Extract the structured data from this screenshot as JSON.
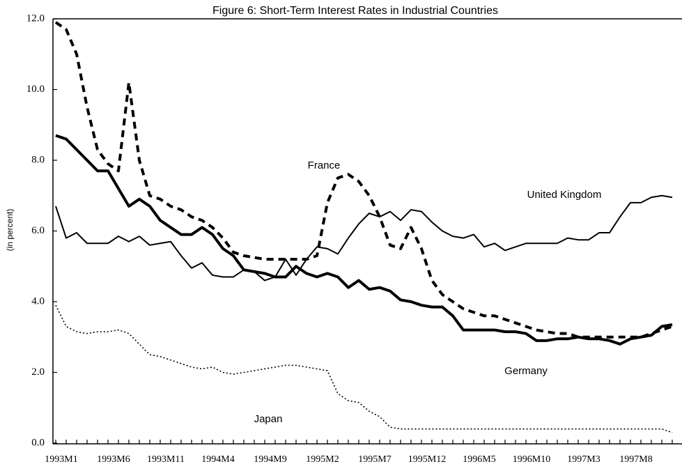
{
  "chart_data": {
    "type": "line",
    "title": "Figure 6: Short-Term Interest Rates in Industrial Countries",
    "y_label": "(in percent)",
    "categories": [
      "1993M1",
      null,
      null,
      null,
      null,
      "1993M6",
      null,
      null,
      null,
      null,
      "1993M11",
      null,
      null,
      null,
      null,
      "1994M4",
      null,
      null,
      null,
      null,
      "1994M9",
      null,
      null,
      null,
      null,
      "1995M2",
      null,
      null,
      null,
      null,
      "1995M7",
      null,
      null,
      null,
      null,
      "1995M12",
      null,
      null,
      null,
      null,
      "1996M5",
      null,
      null,
      null,
      null,
      "1996M10",
      null,
      null,
      null,
      null,
      "1997M3",
      null,
      null,
      null,
      null,
      "1997M8",
      null,
      null,
      null,
      null
    ],
    "ylim": [
      0,
      12
    ],
    "yticks": [
      {
        "value": 0,
        "label": "0.0"
      },
      {
        "value": 2,
        "label": "2.0"
      },
      {
        "value": 4,
        "label": "4.0"
      },
      {
        "value": 6,
        "label": "6.0"
      },
      {
        "value": 8,
        "label": "8.0"
      },
      {
        "value": 10,
        "label": "10.0"
      },
      {
        "value": 12,
        "label": "12.0"
      }
    ],
    "grid": false,
    "series": [
      {
        "name": "France",
        "color": "#000000",
        "dash": "dashed",
        "width": 4,
        "values": [
          11.9,
          11.7,
          11.0,
          9.5,
          8.3,
          7.9,
          7.7,
          10.2,
          8.0,
          7.0,
          6.9,
          6.7,
          6.6,
          6.4,
          6.3,
          6.1,
          5.8,
          5.4,
          5.3,
          5.25,
          5.2,
          5.2,
          5.2,
          5.2,
          5.2,
          5.3,
          6.8,
          7.5,
          7.6,
          7.4,
          7.0,
          6.4,
          5.6,
          5.5,
          6.1,
          5.5,
          4.6,
          4.2,
          4.0,
          3.8,
          3.7,
          3.6,
          3.6,
          3.5,
          3.4,
          3.3,
          3.2,
          3.15,
          3.1,
          3.1,
          3.0,
          3.0,
          3.0,
          3.0,
          3.0,
          3.0,
          3.0,
          3.1,
          3.2,
          3.3
        ]
      },
      {
        "name": "United Kingdom",
        "color": "#000000",
        "dash": "solid",
        "width": 2,
        "values": [
          6.7,
          5.8,
          5.95,
          5.65,
          5.65,
          5.65,
          5.85,
          5.7,
          5.85,
          5.6,
          5.65,
          5.7,
          5.3,
          4.95,
          5.1,
          4.75,
          4.7,
          4.7,
          4.9,
          4.85,
          4.6,
          4.7,
          5.2,
          4.75,
          5.2,
          5.55,
          5.5,
          5.35,
          5.8,
          6.2,
          6.5,
          6.4,
          6.55,
          6.3,
          6.6,
          6.55,
          6.25,
          6.0,
          5.85,
          5.8,
          5.9,
          5.55,
          5.65,
          5.45,
          5.55,
          5.65,
          5.65,
          5.65,
          5.65,
          5.8,
          5.75,
          5.75,
          5.95,
          5.95,
          6.4,
          6.8,
          6.8,
          6.95,
          7.0,
          6.95
        ]
      },
      {
        "name": "Germany",
        "color": "#000000",
        "dash": "solid",
        "width": 4,
        "values": [
          8.7,
          8.6,
          8.3,
          8.0,
          7.7,
          7.7,
          7.2,
          6.7,
          6.9,
          6.7,
          6.3,
          6.1,
          5.9,
          5.9,
          6.1,
          5.9,
          5.5,
          5.3,
          4.9,
          4.85,
          4.8,
          4.7,
          4.7,
          5.0,
          4.8,
          4.7,
          4.8,
          4.7,
          4.4,
          4.6,
          4.35,
          4.4,
          4.3,
          4.05,
          4.0,
          3.9,
          3.85,
          3.85,
          3.6,
          3.2,
          3.2,
          3.2,
          3.2,
          3.15,
          3.15,
          3.1,
          2.9,
          2.9,
          2.95,
          2.95,
          3.0,
          2.95,
          2.95,
          2.9,
          2.8,
          2.95,
          3.0,
          3.05,
          3.3,
          3.35
        ]
      },
      {
        "name": "Japan",
        "color": "#000000",
        "dash": "dotted",
        "width": 1.6,
        "values": [
          3.9,
          3.3,
          3.15,
          3.1,
          3.15,
          3.15,
          3.2,
          3.1,
          2.8,
          2.5,
          2.45,
          2.35,
          2.25,
          2.15,
          2.1,
          2.15,
          2.0,
          1.95,
          2.0,
          2.05,
          2.1,
          2.15,
          2.2,
          2.2,
          2.15,
          2.1,
          2.05,
          1.4,
          1.2,
          1.15,
          0.9,
          0.75,
          0.45,
          0.4,
          0.4,
          0.4,
          0.4,
          0.4,
          0.4,
          0.4,
          0.4,
          0.4,
          0.4,
          0.4,
          0.4,
          0.4,
          0.4,
          0.4,
          0.4,
          0.4,
          0.4,
          0.4,
          0.4,
          0.4,
          0.4,
          0.4,
          0.4,
          0.4,
          0.4,
          0.3
        ]
      }
    ]
  }
}
